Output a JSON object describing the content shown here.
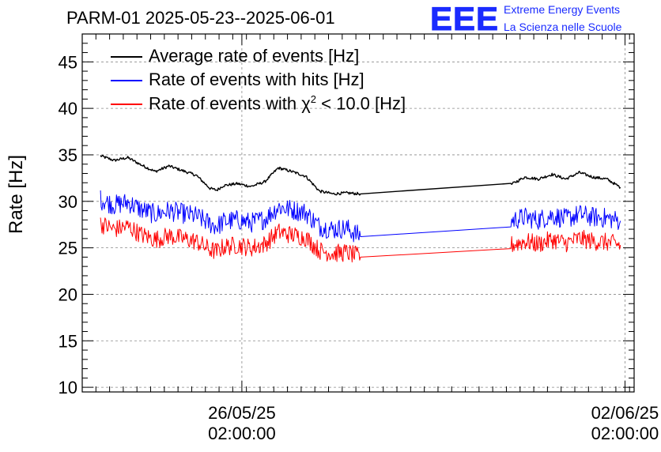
{
  "header": {
    "title": "PARM-01 2025-05-23--2025-06-01",
    "logo_text": "EEE",
    "logo_line1": "Extreme Energy Events",
    "logo_line2": "La Scienza nelle Scuole"
  },
  "chart_data": {
    "type": "line",
    "ylabel": "Rate [Hz]",
    "xlabel": "",
    "ylim": [
      9.5,
      48
    ],
    "xlim": [
      "2025-05-23 04:00",
      "2025-06-02 06:00"
    ],
    "yticks": [
      10,
      15,
      20,
      25,
      30,
      35,
      40,
      45
    ],
    "xticks": [
      {
        "date": "2025-05-26 02:00",
        "label_line1": "26/05/25",
        "label_line2": "02:00:00"
      },
      {
        "date": "2025-06-02 02:00",
        "label_line1": "02/06/25",
        "label_line2": "02:00:00"
      }
    ],
    "grid": true,
    "legend_position": "top-left",
    "legend": {
      "avg_pre": "Average rate of events [Hz]",
      "hits_pre": "Rate of events with hits [Hz]",
      "chi_pre": "Rate of events with ",
      "chi_symbol": "χ",
      "chi_sup": "2",
      "chi_post": " < 10.0 [Hz]"
    },
    "series": [
      {
        "name": "Average rate of events [Hz]",
        "color": "#000000",
        "noise": 0.15,
        "x": [
          "2025-05-23 12:00",
          "2025-05-23 18:00",
          "2025-05-24 00:00",
          "2025-05-24 06:00",
          "2025-05-24 12:00",
          "2025-05-24 18:00",
          "2025-05-25 00:00",
          "2025-05-25 06:00",
          "2025-05-25 12:00",
          "2025-05-25 15:00",
          "2025-05-25 18:00",
          "2025-05-26 00:00",
          "2025-05-26 06:00",
          "2025-05-26 12:00",
          "2025-05-26 18:00",
          "2025-05-27 00:00",
          "2025-05-27 06:00",
          "2025-05-27 12:00",
          "2025-05-27 18:00",
          "2025-05-28 00:00",
          "2025-05-28 06:00",
          "2025-05-31 00:00",
          "2025-05-31 06:00",
          "2025-05-31 12:00",
          "2025-05-31 18:00",
          "2025-06-01 00:00",
          "2025-06-01 06:00",
          "2025-06-01 12:00",
          "2025-06-01 18:00",
          "2025-06-02 00:00"
        ],
        "y": [
          34.9,
          34.4,
          34.7,
          33.9,
          33.2,
          33.8,
          33.3,
          32.8,
          31.4,
          31.2,
          31.7,
          31.9,
          31.6,
          32.1,
          33.6,
          33.2,
          32.7,
          31.1,
          30.8,
          30.9,
          30.8,
          31.8,
          32.6,
          32.4,
          32.9,
          32.4,
          33.1,
          32.6,
          32.4,
          31.5
        ]
      },
      {
        "name": "Rate of events with hits [Hz]",
        "color": "#0000ff",
        "noise": 1.1,
        "x": [
          "2025-05-23 12:00",
          "2025-05-23 18:00",
          "2025-05-24 00:00",
          "2025-05-24 06:00",
          "2025-05-24 12:00",
          "2025-05-24 18:00",
          "2025-05-25 00:00",
          "2025-05-25 06:00",
          "2025-05-25 12:00",
          "2025-05-25 15:00",
          "2025-05-25 18:00",
          "2025-05-26 00:00",
          "2025-05-26 06:00",
          "2025-05-26 12:00",
          "2025-05-26 18:00",
          "2025-05-27 00:00",
          "2025-05-27 06:00",
          "2025-05-27 12:00",
          "2025-05-27 18:00",
          "2025-05-28 00:00",
          "2025-05-28 06:00",
          "2025-05-31 00:00",
          "2025-05-31 06:00",
          "2025-05-31 12:00",
          "2025-05-31 18:00",
          "2025-06-01 00:00",
          "2025-06-01 06:00",
          "2025-06-01 12:00",
          "2025-06-01 18:00",
          "2025-06-02 00:00"
        ],
        "y": [
          30.2,
          29.6,
          29.9,
          29.1,
          28.6,
          29.0,
          28.7,
          28.4,
          27.6,
          27.3,
          27.8,
          28.0,
          27.7,
          28.1,
          29.4,
          29.1,
          28.8,
          27.3,
          27.0,
          27.1,
          26.2,
          27.9,
          28.3,
          28.0,
          28.5,
          28.1,
          28.6,
          28.3,
          28.2,
          27.9
        ]
      },
      {
        "name": "Rate of events with χ2 < 10.0 [Hz]",
        "color": "#ff0000",
        "noise": 1.0,
        "x": [
          "2025-05-23 12:00",
          "2025-05-23 18:00",
          "2025-05-24 00:00",
          "2025-05-24 06:00",
          "2025-05-24 12:00",
          "2025-05-24 18:00",
          "2025-05-25 00:00",
          "2025-05-25 06:00",
          "2025-05-25 12:00",
          "2025-05-25 15:00",
          "2025-05-25 18:00",
          "2025-05-26 00:00",
          "2025-05-26 06:00",
          "2025-05-26 12:00",
          "2025-05-26 18:00",
          "2025-05-27 00:00",
          "2025-05-27 06:00",
          "2025-05-27 12:00",
          "2025-05-27 18:00",
          "2025-05-28 00:00",
          "2025-05-28 06:00",
          "2025-05-31 00:00",
          "2025-05-31 06:00",
          "2025-05-31 12:00",
          "2025-05-31 18:00",
          "2025-06-01 00:00",
          "2025-06-01 06:00",
          "2025-06-01 12:00",
          "2025-06-01 18:00",
          "2025-06-02 00:00"
        ],
        "y": [
          27.6,
          27.0,
          27.3,
          26.4,
          25.9,
          26.3,
          26.0,
          25.7,
          24.8,
          24.6,
          25.1,
          25.3,
          25.0,
          25.4,
          26.7,
          26.4,
          26.1,
          24.7,
          24.4,
          24.5,
          24.0,
          25.3,
          25.7,
          25.4,
          25.9,
          25.5,
          26.0,
          25.7,
          25.6,
          25.3
        ]
      }
    ]
  }
}
